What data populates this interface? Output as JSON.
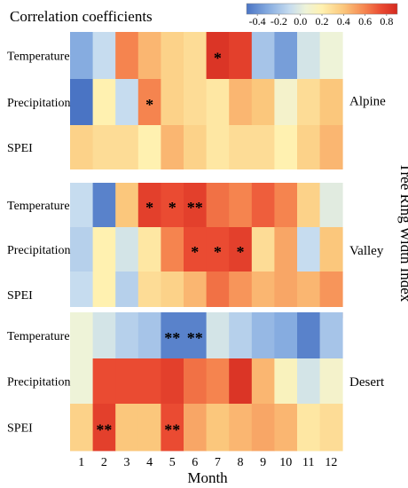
{
  "chart_data": {
    "type": "heatmap",
    "title": "Correlation coefficients",
    "xlabel": "Month",
    "ylabel": "Tree Ring Width Index",
    "x": [
      "1",
      "2",
      "3",
      "4",
      "5",
      "6",
      "7",
      "8",
      "9",
      "10",
      "11",
      "12"
    ],
    "colorbar": {
      "range": [
        -0.5,
        0.9
      ],
      "ticks": [
        "-0.4",
        "-0.2",
        "0.0",
        "0.2",
        "0.4",
        "0.6",
        "0.8"
      ],
      "tick_values": [
        -0.4,
        -0.2,
        0.0,
        0.2,
        0.4,
        0.6,
        0.8
      ],
      "stops": [
        {
          "v": -0.5,
          "c": "#4a74c4"
        },
        {
          "v": -0.3,
          "c": "#86ace0"
        },
        {
          "v": -0.1,
          "c": "#c6dcef"
        },
        {
          "v": 0.05,
          "c": "#eef3d8"
        },
        {
          "v": 0.2,
          "c": "#fff1b0"
        },
        {
          "v": 0.4,
          "c": "#fbc77c"
        },
        {
          "v": 0.6,
          "c": "#f5844f"
        },
        {
          "v": 0.75,
          "c": "#ea4b32"
        },
        {
          "v": 0.9,
          "c": "#d42a20"
        }
      ]
    },
    "groups": [
      {
        "name": "Alpine",
        "rows": [
          {
            "label": "Temperature",
            "values": [
              -0.3,
              -0.1,
              0.6,
              0.45,
              0.35,
              0.3,
              0.85,
              0.8,
              -0.2,
              -0.35,
              -0.05,
              0.05
            ],
            "sig": [
              "",
              "",
              "",
              "",
              "",
              "",
              "*",
              "",
              "",
              "",
              "",
              ""
            ]
          },
          {
            "label": "Precipitation",
            "values": [
              -0.5,
              0.2,
              -0.1,
              0.6,
              0.35,
              0.3,
              0.25,
              0.45,
              0.4,
              0.1,
              0.3,
              0.4
            ],
            "sig": [
              "",
              "",
              "",
              "*",
              "",
              "",
              "",
              "",
              "",
              "",
              "",
              ""
            ]
          },
          {
            "label": "SPEI",
            "values": [
              0.35,
              0.3,
              0.3,
              0.2,
              0.45,
              0.35,
              0.25,
              0.3,
              0.3,
              0.2,
              0.35,
              0.45
            ],
            "sig": [
              "",
              "",
              "",
              "",
              "",
              "",
              "",
              "",
              "",
              "",
              "",
              ""
            ]
          }
        ]
      },
      {
        "name": "Valley",
        "rows": [
          {
            "label": "Temperature",
            "values": [
              -0.1,
              -0.45,
              0.4,
              0.8,
              0.75,
              0.8,
              0.65,
              0.6,
              0.7,
              0.6,
              0.35,
              0.0
            ],
            "sig": [
              "",
              "",
              "",
              "*",
              "*",
              "**",
              "",
              "",
              "",
              "",
              "",
              ""
            ]
          },
          {
            "label": "Precipitation",
            "values": [
              -0.15,
              0.2,
              -0.05,
              0.25,
              0.6,
              0.75,
              0.75,
              0.8,
              0.3,
              0.5,
              -0.1,
              0.4
            ],
            "sig": [
              "",
              "",
              "",
              "",
              "",
              "*",
              "*",
              "*",
              "",
              "",
              "",
              ""
            ]
          },
          {
            "label": "SPEI",
            "values": [
              -0.1,
              0.2,
              -0.15,
              0.3,
              0.35,
              0.45,
              0.65,
              0.55,
              0.45,
              0.5,
              0.45,
              0.55
            ],
            "sig": [
              "",
              "",
              "",
              "",
              "",
              "",
              "",
              "",
              "",
              "",
              "",
              ""
            ]
          }
        ]
      },
      {
        "name": "Desert",
        "rows": [
          {
            "label": "Temperature",
            "values": [
              0.05,
              -0.05,
              -0.15,
              -0.2,
              -0.45,
              -0.45,
              -0.05,
              -0.15,
              -0.25,
              -0.3,
              -0.45,
              -0.2
            ],
            "sig": [
              "",
              "",
              "",
              "",
              "**",
              "**",
              "",
              "",
              "",
              "",
              "",
              ""
            ]
          },
          {
            "label": "Precipitation",
            "values": [
              0.05,
              0.75,
              0.75,
              0.75,
              0.8,
              0.65,
              0.6,
              0.85,
              0.45,
              0.15,
              -0.05,
              0.1
            ],
            "sig": [
              "",
              "",
              "",
              "",
              "",
              "",
              "",
              "",
              "",
              "",
              "",
              ""
            ]
          },
          {
            "label": "SPEI",
            "values": [
              0.35,
              0.8,
              0.4,
              0.4,
              0.75,
              0.5,
              0.4,
              0.45,
              0.5,
              0.45,
              0.25,
              0.3
            ],
            "sig": [
              "",
              "**",
              "",
              "",
              "**",
              "",
              "",
              "",
              "",
              "",
              "",
              ""
            ]
          }
        ]
      }
    ]
  }
}
